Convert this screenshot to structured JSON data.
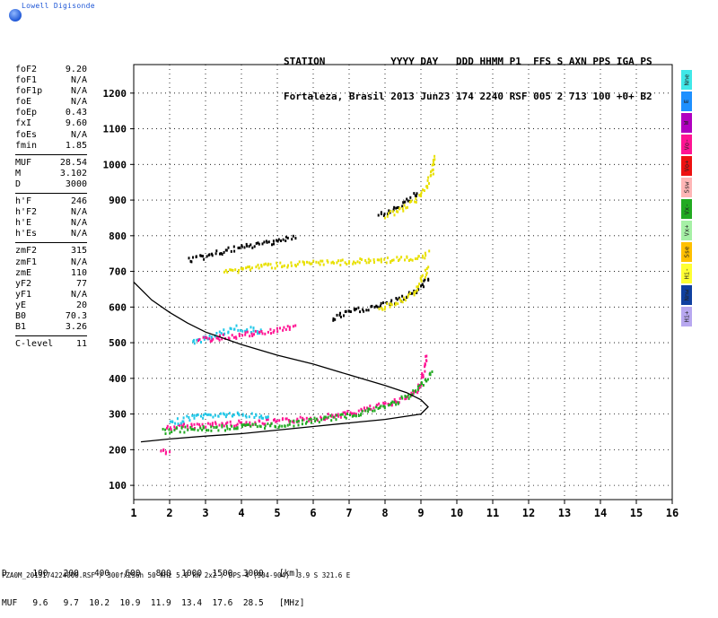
{
  "app": {
    "logo_text": "Lowell Digisonde"
  },
  "header": {
    "line1": "STATION           YYYY DAY   DDD HHMM P1  FFS S AXN PPS IGA PS",
    "line2": "Fortaleza, Brasil 2013 Jun23 174 2240 RSF 005 2 713 100 +0+ B2"
  },
  "params": {
    "group1": [
      {
        "k": "foF2",
        "v": "9.20"
      },
      {
        "k": "foF1",
        "v": "N/A"
      },
      {
        "k": "foF1p",
        "v": "N/A"
      },
      {
        "k": "foE",
        "v": "N/A"
      },
      {
        "k": "foEp",
        "v": "0.43"
      },
      {
        "k": "fxI",
        "v": "9.60"
      },
      {
        "k": "foEs",
        "v": "N/A"
      },
      {
        "k": "fmin",
        "v": "1.85"
      }
    ],
    "group2": [
      {
        "k": "MUF",
        "v": "28.54"
      },
      {
        "k": "M",
        "v": "3.102"
      },
      {
        "k": "D",
        "v": "3000"
      }
    ],
    "group3": [
      {
        "k": "h'F",
        "v": "246"
      },
      {
        "k": "h'F2",
        "v": "N/A"
      },
      {
        "k": "h'E",
        "v": "N/A"
      },
      {
        "k": "h'Es",
        "v": "N/A"
      }
    ],
    "group4": [
      {
        "k": "zmF2",
        "v": "315"
      },
      {
        "k": "zmF1",
        "v": "N/A"
      },
      {
        "k": "zmE",
        "v": "110"
      },
      {
        "k": "yF2",
        "v": "77"
      },
      {
        "k": "yF1",
        "v": "N/A"
      },
      {
        "k": "yE",
        "v": "20"
      },
      {
        "k": "B0",
        "v": "70.3"
      },
      {
        "k": "B1",
        "v": "3.26"
      }
    ],
    "group5": [
      {
        "k": "C-level",
        "v": "11"
      }
    ]
  },
  "legend": [
    {
      "label": "Nne",
      "color": "#40e8e8"
    },
    {
      "label": "E",
      "color": "#1e90ff"
    },
    {
      "label": "W",
      "color": "#b000c0"
    },
    {
      "label": "Vo-",
      "color": "#ff1493"
    },
    {
      "label": "Vo+",
      "color": "#ee1111"
    },
    {
      "label": "Ssw",
      "color": "#ffb6b6"
    },
    {
      "label": "Vx-",
      "color": "#22aa22"
    },
    {
      "label": "Vx+",
      "color": "#a6f0a6"
    },
    {
      "label": "Sse",
      "color": "#ffc000"
    },
    {
      "label": "Hi-",
      "color": "#ffff33"
    },
    {
      "label": "Nnw",
      "color": "#1040a0"
    },
    {
      "label": "Hi+",
      "color": "#b8a8f0"
    }
  ],
  "footer": {
    "line1": "D     100   200   400   600   800  1000  1500  3000   [km]",
    "line2": "MUF   9.6   9.7  10.2  10.9  11.9  13.4  17.6  28.5   [MHz]",
    "fileinfo": "FZA0M_2013174224000.RSF / 300fx256h 50 kHz 5.0 km 2x2 / DPS-4 (904-904)  3.9 S 321.6 E"
  },
  "chart_data": {
    "type": "scatter",
    "xlabel": "",
    "ylabel": "",
    "xlim": [
      1,
      16
    ],
    "ylim": [
      60,
      1280
    ],
    "x_ticks": [
      1,
      2,
      3,
      4,
      5,
      6,
      7,
      8,
      9,
      10,
      11,
      12,
      13,
      14,
      15,
      16
    ],
    "y_ticks": [
      100,
      200,
      300,
      400,
      500,
      600,
      700,
      800,
      900,
      1000,
      1100,
      1200
    ],
    "grid": "dotted",
    "profile_curve": {
      "color": "#000000",
      "points": [
        [
          1.0,
          670
        ],
        [
          1.5,
          620
        ],
        [
          2,
          585
        ],
        [
          2.5,
          555
        ],
        [
          3,
          530
        ],
        [
          4,
          495
        ],
        [
          5,
          465
        ],
        [
          6,
          440
        ],
        [
          7,
          410
        ],
        [
          8,
          380
        ],
        [
          8.6,
          360
        ],
        [
          9.0,
          340
        ],
        [
          9.2,
          320
        ],
        [
          9.0,
          300
        ],
        [
          8,
          285
        ],
        [
          7,
          275
        ],
        [
          6,
          265
        ],
        [
          5,
          255
        ],
        [
          4,
          245
        ],
        [
          3,
          238
        ],
        [
          2,
          230
        ],
        [
          1.2,
          222
        ]
      ]
    },
    "echo_traces": [
      {
        "name": "O-mode F trace",
        "color": "#ff1493",
        "points": [
          [
            1.9,
            265
          ],
          [
            2.5,
            270
          ],
          [
            3,
            273
          ],
          [
            4,
            278
          ],
          [
            5,
            282
          ],
          [
            6,
            292
          ],
          [
            7,
            305
          ],
          [
            8,
            330
          ],
          [
            8.5,
            348
          ],
          [
            8.9,
            370
          ],
          [
            9.0,
            400
          ],
          [
            9.1,
            440
          ],
          [
            9.15,
            470
          ]
        ]
      },
      {
        "name": "cyan spread",
        "color": "#22c8e8",
        "points": [
          [
            2.0,
            275
          ],
          [
            2.4,
            290
          ],
          [
            2.8,
            298
          ],
          [
            3.2,
            300
          ],
          [
            3.6,
            302
          ],
          [
            4.0,
            300
          ],
          [
            4.4,
            298
          ],
          [
            4.8,
            295
          ]
        ]
      },
      {
        "name": "green X trace",
        "color": "#22aa22",
        "points": [
          [
            1.8,
            255
          ],
          [
            2.4,
            260
          ],
          [
            3,
            262
          ],
          [
            4,
            268
          ],
          [
            5,
            272
          ],
          [
            6,
            285
          ],
          [
            7,
            300
          ],
          [
            8,
            325
          ],
          [
            8.7,
            355
          ],
          [
            9.1,
            395
          ],
          [
            9.3,
            430
          ]
        ]
      },
      {
        "name": "2nd hop cyan",
        "color": "#22c8e8",
        "points": [
          [
            2.6,
            505
          ],
          [
            3,
            515
          ],
          [
            3.4,
            530
          ],
          [
            3.8,
            545
          ],
          [
            4.2,
            540
          ],
          [
            4.6,
            535
          ]
        ]
      },
      {
        "name": "2nd hop magenta",
        "color": "#ff1493",
        "points": [
          [
            2.8,
            510
          ],
          [
            3.2,
            515
          ],
          [
            3.6,
            520
          ],
          [
            4,
            525
          ],
          [
            4.5,
            530
          ],
          [
            5,
            540
          ],
          [
            5.5,
            548
          ]
        ]
      },
      {
        "name": "2nd hop black",
        "color": "#000000",
        "points": [
          [
            6.5,
            570
          ],
          [
            7,
            590
          ],
          [
            7.5,
            600
          ],
          [
            8,
            610
          ],
          [
            8.5,
            630
          ],
          [
            9,
            660
          ],
          [
            9.2,
            690
          ]
        ]
      },
      {
        "name": "2nd hop yellow",
        "color": "#e8e000",
        "points": [
          [
            7.8,
            600
          ],
          [
            8.3,
            615
          ],
          [
            8.8,
            640
          ],
          [
            9.0,
            680
          ],
          [
            9.2,
            720
          ]
        ]
      },
      {
        "name": "3rd hop black",
        "color": "#000000",
        "points": [
          [
            2.5,
            735
          ],
          [
            3,
            745
          ],
          [
            3.5,
            760
          ],
          [
            4,
            770
          ],
          [
            4.5,
            780
          ],
          [
            5,
            790
          ],
          [
            5.5,
            800
          ]
        ]
      },
      {
        "name": "3rd hop yellow",
        "color": "#e8e000",
        "points": [
          [
            3.5,
            700
          ],
          [
            4,
            710
          ],
          [
            4.5,
            718
          ],
          [
            9.0,
            740
          ],
          [
            9.2,
            760
          ]
        ]
      },
      {
        "name": "4th hop black",
        "color": "#000000",
        "points": [
          [
            7.8,
            860
          ],
          [
            8.2,
            880
          ],
          [
            8.6,
            900
          ],
          [
            8.9,
            930
          ]
        ]
      },
      {
        "name": "4th hop yellow",
        "color": "#e8e000",
        "points": [
          [
            8.0,
            860
          ],
          [
            8.5,
            880
          ],
          [
            8.9,
            910
          ],
          [
            9.1,
            940
          ],
          [
            9.3,
            980
          ],
          [
            9.35,
            1030
          ]
        ]
      },
      {
        "name": "low E echo",
        "color": "#ff1493",
        "points": [
          [
            1.75,
            200
          ],
          [
            1.85,
            200
          ],
          [
            2.0,
            198
          ]
        ]
      }
    ]
  }
}
